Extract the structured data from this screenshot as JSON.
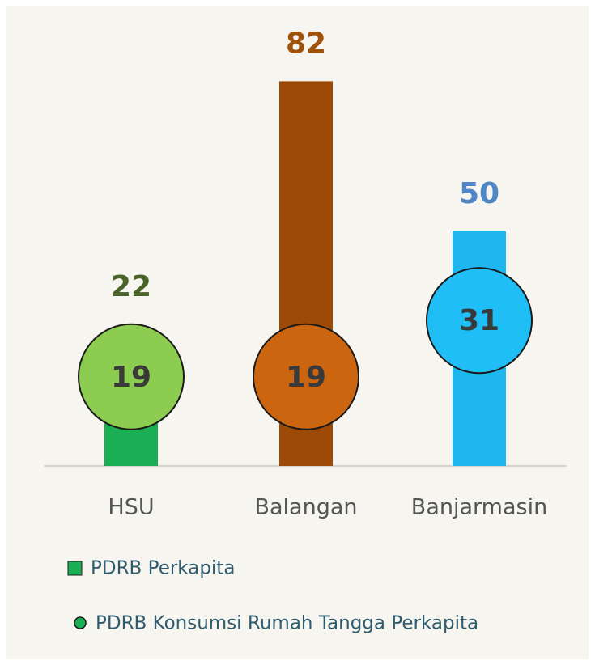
{
  "chart_data": {
    "type": "bar",
    "categories": [
      "HSU",
      "Balangan",
      "Banjarmasin"
    ],
    "series": [
      {
        "name": "PDRB Perkapita",
        "marker": "bar",
        "values": [
          22,
          82,
          50
        ],
        "colors": [
          "#1aaf54",
          "#9c4a05",
          "#1fb6f0"
        ],
        "label_colors": [
          "#4a6328",
          "#a0520a",
          "#4f86c6"
        ]
      },
      {
        "name": "PDRB Konsumsi Rumah Tangga Perkapita",
        "marker": "circle",
        "values": [
          19,
          19,
          31
        ],
        "colors": [
          "#8ccc50",
          "#cc6510",
          "#20bef6"
        ]
      }
    ],
    "legend_colors": [
      "#1aaf54",
      "#1aaf54"
    ]
  }
}
